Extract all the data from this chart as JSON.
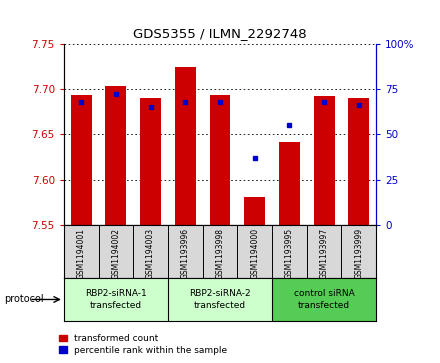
{
  "title": "GDS5355 / ILMN_2292748",
  "samples": [
    "GSM1194001",
    "GSM1194002",
    "GSM1194003",
    "GSM1193996",
    "GSM1193998",
    "GSM1194000",
    "GSM1193995",
    "GSM1193997",
    "GSM1193999"
  ],
  "red_values": [
    7.693,
    7.703,
    7.69,
    7.724,
    7.693,
    7.581,
    7.641,
    7.692,
    7.69
  ],
  "blue_values": [
    68,
    72,
    65,
    68,
    68,
    37,
    55,
    68,
    66
  ],
  "ylim": [
    7.55,
    7.75
  ],
  "y2lim": [
    0,
    100
  ],
  "yticks": [
    7.55,
    7.6,
    7.65,
    7.7,
    7.75
  ],
  "y2ticks": [
    0,
    25,
    50,
    75,
    100
  ],
  "y2tick_labels": [
    "0",
    "25",
    "50",
    "75",
    "100%"
  ],
  "red_color": "#cc0000",
  "blue_color": "#0000cc",
  "groups": [
    {
      "label": "RBP2-siRNA-1\ntransfected",
      "start": 0,
      "end": 3,
      "color": "#ccffcc"
    },
    {
      "label": "RBP2-siRNA-2\ntransfected",
      "start": 3,
      "end": 6,
      "color": "#ccffcc"
    },
    {
      "label": "control siRNA\ntransfected",
      "start": 6,
      "end": 9,
      "color": "#55cc55"
    }
  ],
  "legend_red": "transformed count",
  "legend_blue": "percentile rank within the sample",
  "protocol_label": "protocol",
  "sample_bg_color": "#d8d8d8",
  "plot_bg_color": "#ffffff"
}
